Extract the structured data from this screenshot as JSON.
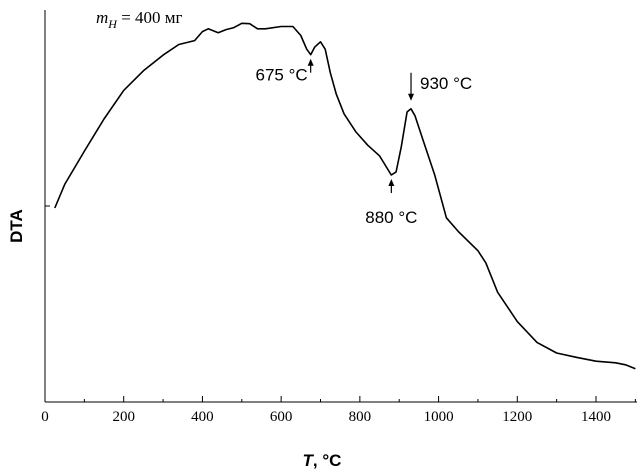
{
  "chart_data": {
    "type": "line",
    "title": "",
    "xlabel_var": "T",
    "xlabel_unit": ", °C",
    "ylabel": "DTA",
    "xlim": [
      0,
      1500
    ],
    "x_ticks": [
      0,
      200,
      400,
      600,
      800,
      1000,
      1200,
      1400
    ],
    "x_tick_labels": [
      "0",
      "200",
      "400",
      "600",
      "800",
      "1000",
      "1200",
      "1400"
    ],
    "x_minor_step": 100,
    "ylim": [
      0,
      100
    ],
    "y_ticks": [
      50
    ],
    "grid": false,
    "sample": {
      "symbol": "m",
      "subscript": "Н",
      "value_text": " = 400 мг"
    },
    "series": [
      {
        "x": [
          25,
          50,
          100,
          150,
          200,
          250,
          300,
          340,
          380,
          400,
          415,
          440,
          460,
          480,
          500,
          520,
          540,
          560,
          600,
          630,
          650,
          665,
          675,
          685,
          700,
          712,
          725,
          740,
          760,
          790,
          820,
          850,
          880,
          892,
          905,
          920,
          930,
          940,
          960,
          990,
          1020,
          1050,
          1100,
          1120,
          1150,
          1200,
          1250,
          1300,
          1350,
          1400,
          1450,
          1475,
          1500
        ],
        "y": [
          49.5,
          55.5,
          64,
          72.2,
          79.5,
          84.5,
          88.5,
          91.2,
          92.2,
          94.5,
          95.2,
          94.2,
          95.0,
          95.5,
          96.6,
          96.5,
          95.2,
          95.2,
          95.8,
          95.8,
          93.5,
          90,
          88.6,
          90.5,
          91.9,
          90,
          84,
          78.6,
          73.5,
          68.9,
          65.5,
          62.8,
          57.9,
          58.7,
          65,
          74,
          74.8,
          73,
          67,
          58,
          47,
          43.5,
          38.6,
          35.5,
          28,
          20.5,
          15.2,
          12.5,
          11.4,
          10.4,
          10.0,
          9.5,
          8.5
        ]
      }
    ],
    "annotations": [
      {
        "text": "675 °C",
        "x": 675,
        "y": 88.6,
        "arrow": "up"
      },
      {
        "text": "880 °C",
        "x": 880,
        "y": 57.9,
        "arrow": "up"
      },
      {
        "text": "930 °C",
        "x": 930,
        "y": 74.8,
        "arrow": "down"
      }
    ]
  }
}
